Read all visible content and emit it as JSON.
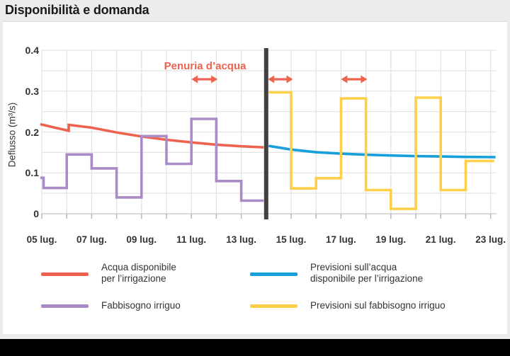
{
  "page": {
    "title": "Disponibilità e domanda"
  },
  "colors": {
    "page_bg": "#ececec",
    "card_bg": "#ffffff",
    "footer_bar": "#000000",
    "grid": "#e4e4e4",
    "axis_line": "#d0d0d0",
    "tick": "#b8b8b8",
    "text": "#333333",
    "title_text": "#1a1a1a",
    "available": "#ed6350",
    "demand": "#a98cc5",
    "forecast_available": "#169fd9",
    "forecast_demand": "#fdd04a",
    "divider": "#414141",
    "annotation": "#ed6350"
  },
  "chart_data": {
    "type": "line",
    "title": "Disponibilità e domanda",
    "ylabel": "Deflusso (m³/s)",
    "xlabel": "",
    "ylim": [
      0,
      0.4
    ],
    "y_grid_step": 0.05,
    "yticks": {
      "values": [
        0,
        0.1,
        0.2,
        0.3,
        0.4
      ],
      "labels": [
        "0",
        "0.1",
        "0.2",
        "0.3",
        "0.4"
      ]
    },
    "x_days": {
      "start": 5,
      "end": 23,
      "grid_step": 1,
      "month_label": "lug."
    },
    "xticks": {
      "values": [
        5,
        7,
        9,
        11,
        13,
        15,
        17,
        19,
        21,
        23
      ],
      "labels": [
        "05 lug.",
        "07 lug.",
        "09 lug.",
        "11 lug.",
        "13 lug.",
        "15 lug.",
        "17 lug.",
        "19 lug.",
        "21 lug.",
        "23 lug."
      ]
    },
    "divider_day": 14,
    "annotation": {
      "text": "Penuria d’acqua",
      "day": 11.55,
      "value": 0.36
    },
    "shortage_arrows": [
      {
        "from_day": 11.0,
        "to_day": 12.05,
        "value": 0.329
      },
      {
        "from_day": 14.07,
        "to_day": 15.07,
        "value": 0.329
      },
      {
        "from_day": 17.0,
        "to_day": 18.05,
        "value": 0.329
      }
    ],
    "series": [
      {
        "id": "available",
        "name": "Acqua disponibile per l’irrigazione",
        "type": "line",
        "color_key": "available",
        "points": [
          [
            4.94,
            0.219
          ],
          [
            5.5,
            0.211
          ],
          [
            6.08,
            0.203
          ],
          [
            6.08,
            0.2175
          ],
          [
            7,
            0.2105
          ],
          [
            8,
            0.199
          ],
          [
            9,
            0.189
          ],
          [
            10,
            0.181
          ],
          [
            11,
            0.1745
          ],
          [
            12,
            0.169
          ],
          [
            13,
            0.165
          ],
          [
            13.9,
            0.1625
          ]
        ]
      },
      {
        "id": "demand",
        "name": "Fabbisogno irriguo",
        "type": "step",
        "color_key": "demand",
        "end_day": 13.9,
        "steps": [
          [
            4.94,
            0.088
          ],
          [
            5.07,
            0.063
          ],
          [
            6,
            0.145
          ],
          [
            7,
            0.111
          ],
          [
            8,
            0.04
          ],
          [
            9,
            0.19
          ],
          [
            10,
            0.122
          ],
          [
            11,
            0.232
          ],
          [
            12,
            0.08
          ],
          [
            13,
            0.032
          ]
        ]
      },
      {
        "id": "forecast-available",
        "name": "Previsioni sull’acqua disponibile per l’irrigazione",
        "type": "line",
        "color_key": "forecast_available",
        "points": [
          [
            14.1,
            0.166
          ],
          [
            15,
            0.157
          ],
          [
            16,
            0.1505
          ],
          [
            17,
            0.147
          ],
          [
            18,
            0.1445
          ],
          [
            19,
            0.1425
          ],
          [
            20,
            0.141
          ],
          [
            21,
            0.14
          ],
          [
            22,
            0.139
          ],
          [
            23.2,
            0.1385
          ]
        ]
      },
      {
        "id": "forecast-demand",
        "name": "Previsioni sul fabbisogno irriguo",
        "type": "step",
        "color_key": "forecast_demand",
        "end_day": 23.15,
        "steps": [
          [
            14.1,
            0.297
          ],
          [
            15,
            0.062
          ],
          [
            16,
            0.087
          ],
          [
            17,
            0.282
          ],
          [
            18,
            0.058
          ],
          [
            19,
            0.012
          ],
          [
            20,
            0.284
          ],
          [
            21,
            0.058
          ],
          [
            22,
            0.129
          ]
        ]
      }
    ]
  },
  "legend": {
    "items": [
      {
        "id": "available",
        "color_key": "available",
        "column": 1,
        "row": 1,
        "lines": [
          "Acqua disponibile",
          "per l’irrigazione"
        ]
      },
      {
        "id": "demand",
        "color_key": "demand",
        "column": 1,
        "row": 2,
        "lines": [
          "Fabbisogno irriguo"
        ]
      },
      {
        "id": "forecast-available",
        "color_key": "forecast_available",
        "column": 2,
        "row": 1,
        "lines": [
          "Previsioni sull’acqua",
          "disponibile per l’irrigazione"
        ]
      },
      {
        "id": "forecast-demand",
        "color_key": "forecast_demand",
        "column": 2,
        "row": 2,
        "lines": [
          "Previsioni sul fabbisogno irriguo"
        ]
      }
    ]
  }
}
